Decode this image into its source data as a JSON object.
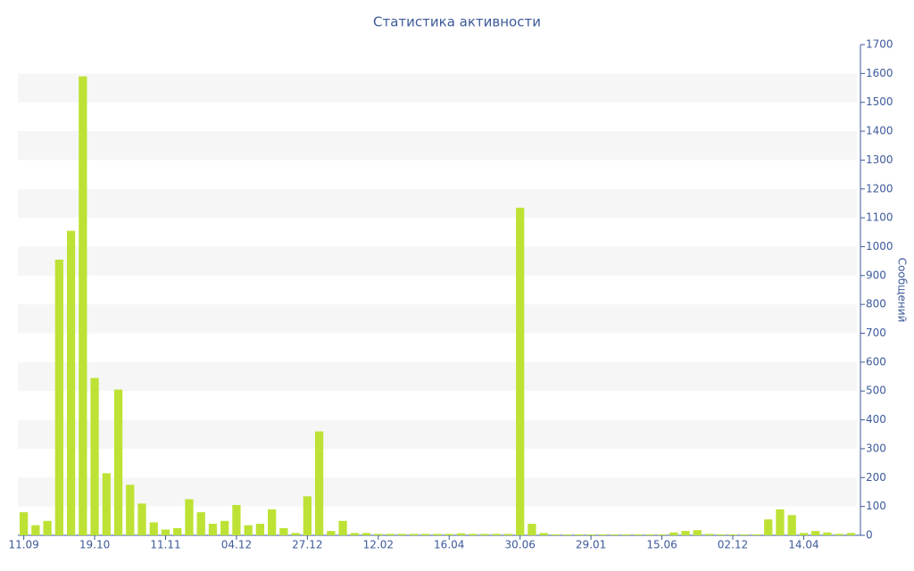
{
  "chart_data": {
    "type": "bar",
    "title": "Статистика активности",
    "y_label": "Сообщений",
    "categories": [
      "11.09",
      null,
      null,
      null,
      null,
      null,
      "19.10",
      null,
      null,
      null,
      null,
      null,
      "11.11",
      null,
      null,
      null,
      null,
      null,
      "04.12",
      null,
      null,
      null,
      null,
      null,
      "27.12",
      null,
      null,
      null,
      null,
      null,
      "12.02",
      null,
      null,
      null,
      null,
      null,
      "16.04",
      null,
      null,
      null,
      null,
      null,
      "30.06",
      null,
      null,
      null,
      null,
      null,
      "29.01",
      null,
      null,
      null,
      null,
      null,
      "15.06",
      null,
      null,
      null,
      null,
      null,
      "02.12",
      null,
      null,
      null,
      null,
      null,
      "14.04",
      null,
      null,
      null,
      null
    ],
    "values": [
      80,
      35,
      50,
      955,
      1055,
      1590,
      545,
      215,
      505,
      175,
      110,
      45,
      20,
      25,
      125,
      80,
      40,
      50,
      105,
      35,
      40,
      90,
      25,
      8,
      135,
      360,
      15,
      50,
      8,
      8,
      5,
      5,
      5,
      5,
      5,
      5,
      5,
      7,
      5,
      5,
      5,
      5,
      1135,
      40,
      8,
      3,
      3,
      3,
      3,
      3,
      3,
      3,
      3,
      3,
      3,
      10,
      15,
      18,
      5,
      3,
      3,
      3,
      3,
      55,
      90,
      70,
      8,
      15,
      10,
      5,
      8
    ],
    "color": "#bde235",
    "ylim": [
      0,
      1700
    ],
    "yticks": [
      0,
      100,
      200,
      300,
      400,
      500,
      600,
      700,
      800,
      900,
      1000,
      1100,
      1200,
      1300,
      1400,
      1500,
      1600,
      1700
    ],
    "y_axis_side": "right",
    "grid": "bands"
  }
}
